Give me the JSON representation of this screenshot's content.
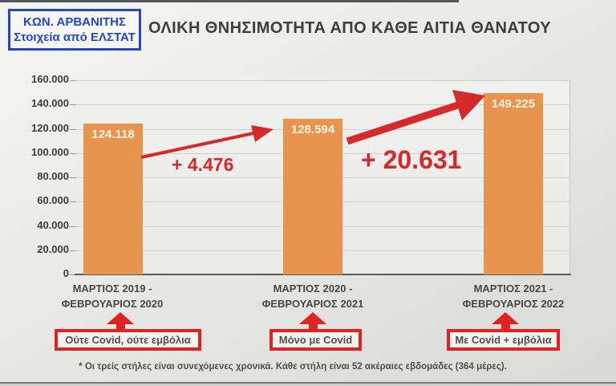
{
  "title": "ΟΛΙΚΗ ΘΝΗΣΙΜΟΤΗΤΑ ΑΠΟ ΚΑΘΕ ΑΙΤΙΑ ΘΑΝΑΤΟΥ",
  "source_badge": {
    "line1": "ΚΩΝ. ΑΡΒΑΝΙΤΗΣ",
    "line2": "Στοιχεία από ΕΛΣΤΑΤ"
  },
  "chart_data": {
    "type": "bar",
    "title": "ΟΛΙΚΗ ΘΝΗΣΙΜΟΤΗΤΑ ΑΠΟ ΚΑΘΕ ΑΙΤΙΑ ΘΑΝΑΤΟΥ",
    "categories": [
      [
        "ΜΑΡΤΙΟΣ 2019 -",
        "ΦΕΒΡΟΥΑΡΙΟΣ 2020"
      ],
      [
        "ΜΑΡΤΙΟΣ 2020 -",
        "ΦΕΒΡΟΥΑΡΙΟΣ 2021"
      ],
      [
        "ΜΑΡΤΙΟΣ 2021 -",
        "ΦΕΒΡΟΥΑΡΙΟΣ 2022"
      ]
    ],
    "values": [
      124118,
      128594,
      149225
    ],
    "value_labels": [
      "124.118",
      "128.594",
      "149.225"
    ],
    "ylim": [
      0,
      160000
    ],
    "ytick_labels": [
      "0",
      "20.000",
      "40.000",
      "60.000",
      "80.000",
      "100.000",
      "120.000",
      "140.000",
      "160.000"
    ],
    "grid": true,
    "legend": "none",
    "bar_color": "#e8934e",
    "annotations": [
      {
        "text": "+ 4.476"
      },
      {
        "text": "+ 20.631"
      }
    ]
  },
  "category_tags": [
    {
      "label": "Ούτε Covid, ούτε εμβόλια"
    },
    {
      "label": "Μόνο με Covid"
    },
    {
      "label": "Με Covid + εμβόλια"
    }
  ],
  "footnote": "* Οι τρείς στήλες είναι συνεχόμενες χρονικά. Κάθε στήλη είναι 52 ακέραιες εβδομάδες (364 μέρες).",
  "colors": {
    "bar": "#e8934e",
    "accent_red": "#d42a2a",
    "badge_blue": "#2746c3",
    "title_gray": "#3e3e3e",
    "text_gray": "#4f4f4f"
  }
}
